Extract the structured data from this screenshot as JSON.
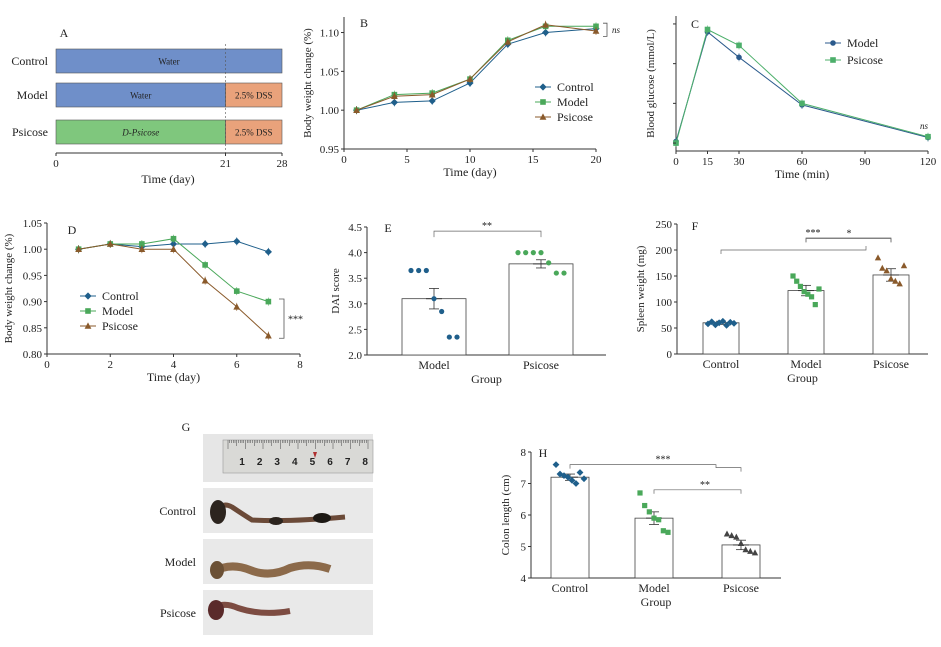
{
  "panel_letters": {
    "A": "A",
    "B": "B",
    "C": "C",
    "D": "D",
    "E": "E",
    "F": "F",
    "G": "G",
    "H": "H"
  },
  "colors": {
    "water": "#6f8fc9",
    "dss": "#e9a27b",
    "psicose_bar": "#7fc77d",
    "control": "#1f5f8b",
    "model": "#4aa85a",
    "psicose": "#8a5a2b",
    "model_c": "#2b5a8c",
    "psicose_c": "#4caf6a",
    "grey": "#888888"
  },
  "panel_g": {
    "ruler_numbers": [
      "1",
      "2",
      "3",
      "4",
      "5",
      "6",
      "7",
      "8"
    ],
    "rows": [
      "Control",
      "Model",
      "Psicose"
    ]
  },
  "chart_data": [
    {
      "panel": "A",
      "type": "table",
      "xlabel": "Time (day)",
      "xticks": [
        0,
        21,
        28
      ],
      "rows": [
        {
          "name": "Control",
          "segments": [
            {
              "label": "Water",
              "start": 0,
              "end": 28,
              "kind": "water"
            }
          ]
        },
        {
          "name": "Model",
          "segments": [
            {
              "label": "Water",
              "start": 0,
              "end": 21,
              "kind": "water"
            },
            {
              "label": "2.5% DSS",
              "start": 21,
              "end": 28,
              "kind": "dss"
            }
          ]
        },
        {
          "name": "Psicose",
          "segments": [
            {
              "label": "D-Psicose",
              "start": 0,
              "end": 21,
              "kind": "psicose"
            },
            {
              "label": "2.5% DSS",
              "start": 21,
              "end": 28,
              "kind": "dss"
            }
          ]
        }
      ]
    },
    {
      "panel": "B",
      "type": "line",
      "xlabel": "Time (day)",
      "ylabel": "Body weight change (%)",
      "xlim": [
        0,
        20
      ],
      "ylim": [
        0.95,
        1.12
      ],
      "xticks": [
        0,
        5,
        10,
        15,
        20
      ],
      "yticks": [
        0.95,
        1.0,
        1.05,
        1.1
      ],
      "ytick_labels": [
        "0.95",
        "1.00",
        "1.05",
        "1.10"
      ],
      "legend": "center-right",
      "annotation": "ns",
      "x": [
        1,
        4,
        7,
        10,
        13,
        16,
        20
      ],
      "series": [
        {
          "name": "Control",
          "values": [
            1.0,
            1.01,
            1.012,
            1.035,
            1.085,
            1.1,
            1.105
          ]
        },
        {
          "name": "Model",
          "values": [
            1.0,
            1.02,
            1.022,
            1.04,
            1.09,
            1.108,
            1.108
          ]
        },
        {
          "name": "Psicose",
          "values": [
            1.0,
            1.018,
            1.02,
            1.04,
            1.088,
            1.11,
            1.102
          ]
        }
      ]
    },
    {
      "panel": "C",
      "type": "line",
      "xlabel": "Time (min)",
      "ylabel": "Blood glucose (mmol/L)",
      "xlim": [
        0,
        120
      ],
      "ylim": [
        4,
        21
      ],
      "xticks": [
        0,
        15,
        30,
        60,
        90,
        120
      ],
      "legend": "top-right",
      "annotation": "ns",
      "x": [
        0,
        15,
        30,
        60,
        120
      ],
      "series": [
        {
          "name": "Model",
          "values": [
            5.2,
            19.0,
            15.8,
            9.8,
            5.7
          ]
        },
        {
          "name": "Psicose",
          "values": [
            5.0,
            19.3,
            17.3,
            10.0,
            5.8
          ]
        }
      ]
    },
    {
      "panel": "D",
      "type": "line",
      "xlabel": "Time (day)",
      "ylabel": "Body weight change (%)",
      "xlim": [
        0,
        8
      ],
      "ylim": [
        0.8,
        1.05
      ],
      "xticks": [
        0,
        2,
        4,
        6,
        8
      ],
      "yticks": [
        0.8,
        0.85,
        0.9,
        0.95,
        1.0,
        1.05
      ],
      "ytick_labels": [
        "0.80",
        "0.85",
        "0.90",
        "0.95",
        "1.00",
        "1.05"
      ],
      "legend": "bottom-left",
      "annotation": "***",
      "x": [
        1,
        2,
        3,
        4,
        5,
        6,
        7
      ],
      "series": [
        {
          "name": "Control",
          "values": [
            1.0,
            1.01,
            1.005,
            1.01,
            1.01,
            1.015,
            0.995
          ]
        },
        {
          "name": "Model",
          "values": [
            1.0,
            1.01,
            1.01,
            1.02,
            0.97,
            0.92,
            0.9
          ]
        },
        {
          "name": "Psicose",
          "values": [
            1.0,
            1.01,
            1.0,
            1.0,
            0.94,
            0.89,
            0.835
          ]
        }
      ]
    },
    {
      "panel": "E",
      "type": "bar",
      "xlabel": "Group",
      "ylabel": "DAI score",
      "ylim": [
        2.0,
        4.5
      ],
      "yticks": [
        2.0,
        2.5,
        3.0,
        3.5,
        4.0,
        4.5
      ],
      "ytick_labels": [
        "2.0",
        "2.5",
        "3.0",
        "3.5",
        "4.0",
        "4.5"
      ],
      "categories": [
        "Model",
        "Psicose"
      ],
      "values": [
        3.1,
        3.78
      ],
      "errors": [
        0.2,
        0.08
      ],
      "points": [
        [
          3.65,
          3.65,
          3.65,
          3.1,
          2.85,
          2.35,
          2.35
        ],
        [
          4.0,
          4.0,
          4.0,
          4.0,
          3.8,
          3.6,
          3.6
        ]
      ],
      "significance": "**"
    },
    {
      "panel": "F",
      "type": "bar",
      "xlabel": "Group",
      "ylabel": "Spleen weight (mg)",
      "ylim": [
        0,
        250
      ],
      "yticks": [
        0,
        50,
        100,
        150,
        200,
        250
      ],
      "categories": [
        "Control",
        "Model",
        "Psicose"
      ],
      "values": [
        60,
        122,
        152
      ],
      "errors": [
        3,
        10,
        12
      ],
      "points": [
        [
          58,
          62,
          56,
          60,
          63,
          55,
          61,
          59
        ],
        [
          150,
          140,
          130,
          120,
          115,
          110,
          95,
          125
        ],
        [
          185,
          165,
          160,
          145,
          140,
          135,
          170
        ]
      ],
      "significance": [
        "***",
        "*"
      ]
    },
    {
      "panel": "H",
      "type": "bar",
      "xlabel": "Group",
      "ylabel": "Colon length (cm)",
      "ylim": [
        4,
        8
      ],
      "yticks": [
        4,
        5,
        6,
        7,
        8
      ],
      "categories": [
        "Control",
        "Model",
        "Psicose"
      ],
      "values": [
        7.2,
        5.9,
        5.05
      ],
      "errors": [
        0.1,
        0.2,
        0.15
      ],
      "points": [
        [
          7.6,
          7.3,
          7.25,
          7.2,
          7.1,
          7.0,
          7.35,
          7.15
        ],
        [
          6.7,
          6.3,
          6.1,
          5.9,
          5.85,
          5.5,
          5.45
        ],
        [
          5.4,
          5.35,
          5.3,
          5.1,
          4.9,
          4.85,
          4.8
        ]
      ],
      "significance": [
        "***",
        "**"
      ]
    }
  ]
}
